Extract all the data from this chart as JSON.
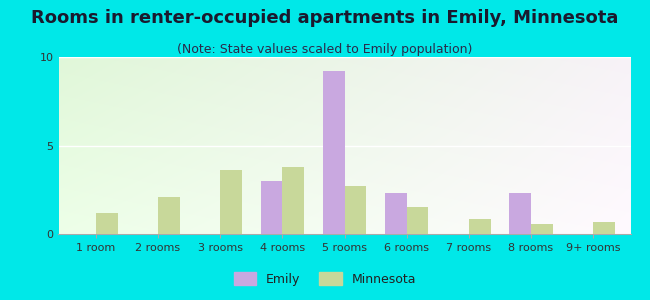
{
  "title": "Rooms in renter-occupied apartments in Emily, Minnesota",
  "subtitle": "(Note: State values scaled to Emily population)",
  "categories": [
    "1 room",
    "2 rooms",
    "3 rooms",
    "4 rooms",
    "5 rooms",
    "6 rooms",
    "7 rooms",
    "8 rooms",
    "9+ rooms"
  ],
  "emily_values": [
    0,
    0,
    0,
    3.0,
    9.2,
    2.3,
    0,
    2.3,
    0
  ],
  "minnesota_values": [
    1.2,
    2.1,
    3.6,
    3.8,
    2.7,
    1.5,
    0.85,
    0.55,
    0.7
  ],
  "emily_color": "#c9a8e0",
  "minnesota_color": "#c8d89a",
  "background_outer": "#00e8e8",
  "ylim": [
    0,
    10
  ],
  "yticks": [
    0,
    5,
    10
  ],
  "bar_width": 0.35,
  "title_fontsize": 13,
  "subtitle_fontsize": 9,
  "tick_fontsize": 8,
  "legend_fontsize": 9,
  "grad_tl": [
    0.88,
    0.97,
    0.85
  ],
  "grad_tr": [
    0.97,
    0.95,
    0.97
  ],
  "grad_bl": [
    0.93,
    1.0,
    0.91
  ],
  "grad_br": [
    1.0,
    0.98,
    1.0
  ]
}
